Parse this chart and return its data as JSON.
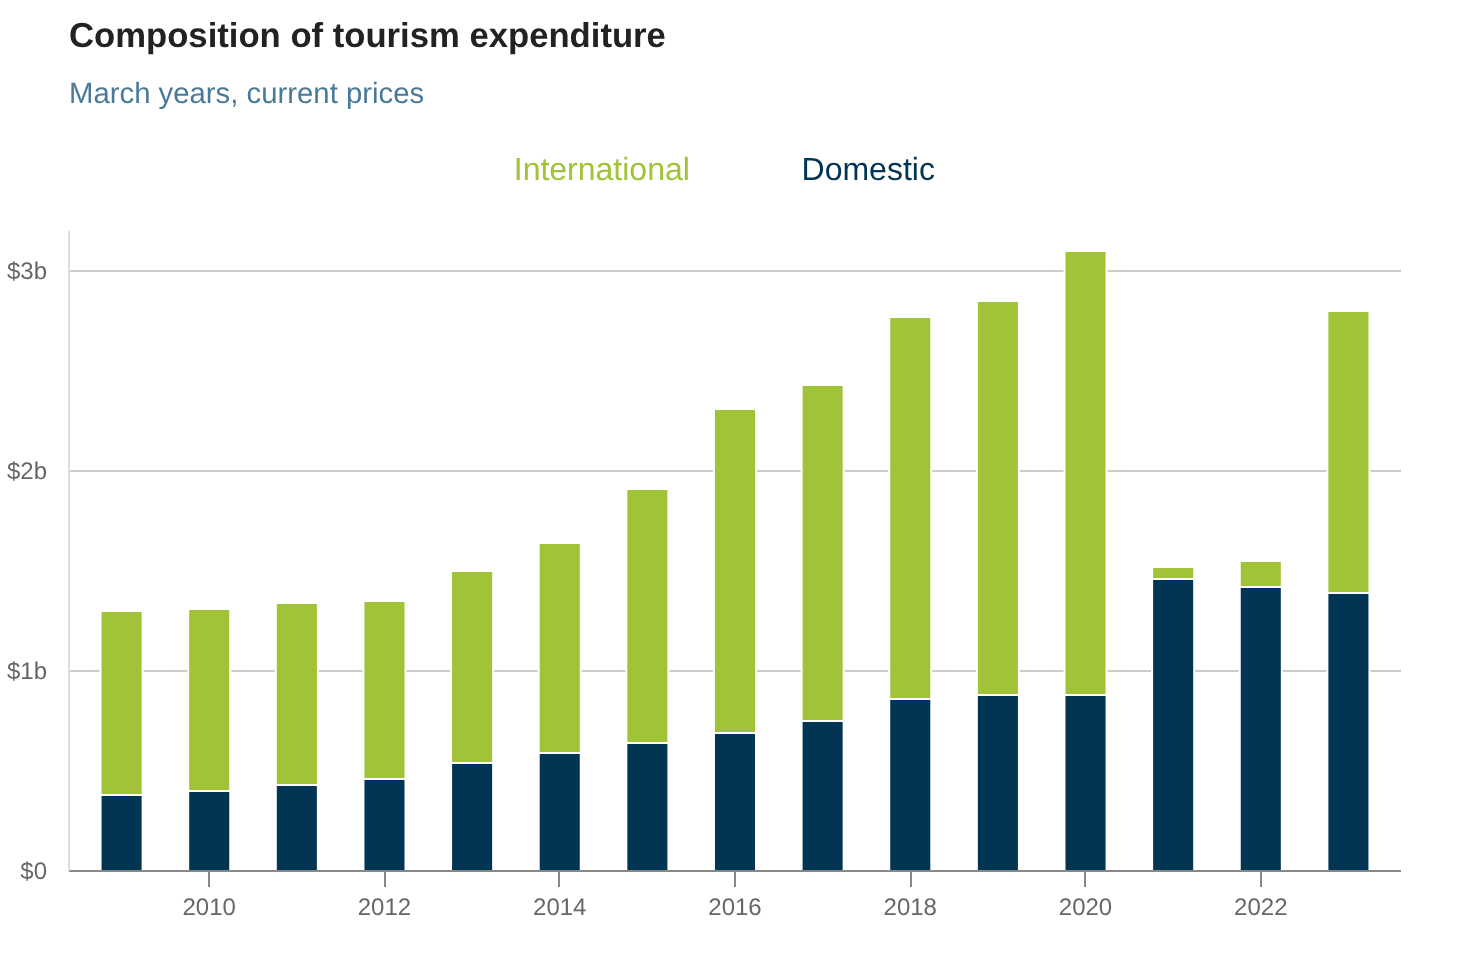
{
  "chart_data": {
    "type": "bar",
    "title": "Composition of tourism expenditure",
    "subtitle": "March years, current prices",
    "x": [
      2009,
      2010,
      2011,
      2012,
      2013,
      2014,
      2015,
      2016,
      2017,
      2018,
      2019,
      2020,
      2021,
      2022,
      2023
    ],
    "stacked": true,
    "series": [
      {
        "name": "Domestic",
        "color": "#023453",
        "values": [
          0.38,
          0.4,
          0.43,
          0.46,
          0.54,
          0.59,
          0.64,
          0.69,
          0.75,
          0.86,
          0.88,
          0.88,
          1.46,
          1.42,
          1.39
        ]
      },
      {
        "name": "International",
        "color": "#a0c337",
        "values": [
          0.92,
          0.91,
          0.91,
          0.89,
          0.96,
          1.05,
          1.27,
          1.62,
          1.68,
          1.91,
          1.97,
          2.22,
          0.06,
          0.13,
          1.41
        ]
      }
    ],
    "xlim": [
      2008.4,
      2023.6
    ],
    "xticks": [
      2010,
      2012,
      2014,
      2016,
      2018,
      2020,
      2022
    ],
    "ylim": [
      0,
      3.2
    ],
    "yticks": [
      {
        "value": 0,
        "label": "$0"
      },
      {
        "value": 1,
        "label": "$1b"
      },
      {
        "value": 2,
        "label": "$2b"
      },
      {
        "value": 3,
        "label": "$3b"
      }
    ],
    "grid": "y",
    "legend": "top"
  }
}
